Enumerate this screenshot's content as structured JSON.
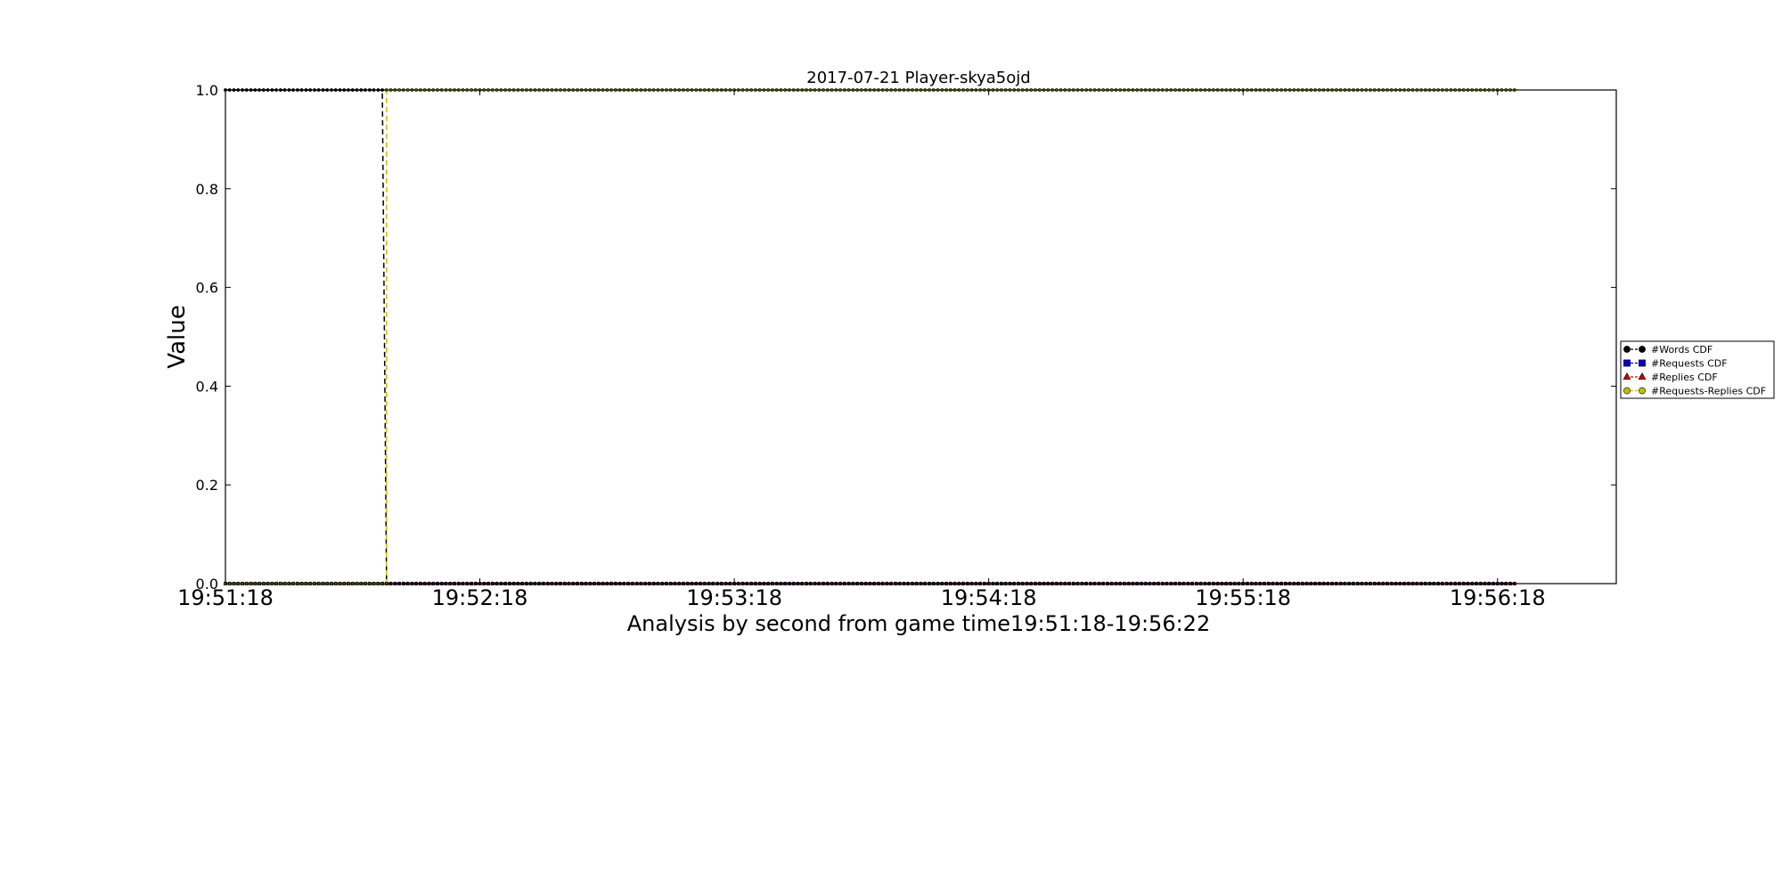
{
  "chart_data": {
    "type": "line",
    "title": "2017-07-21 Player-skya5ojd",
    "xlabel": "Analysis by second from game time19:51:18-19:56:22",
    "ylabel": "Value",
    "x_ticks": [
      "19:51:18",
      "19:52:18",
      "19:53:18",
      "19:54:18",
      "19:55:18",
      "19:56:18"
    ],
    "y_ticks": [
      "0.0",
      "0.2",
      "0.4",
      "0.6",
      "0.8",
      "1.0"
    ],
    "xlim": [
      "19:51:18",
      "19:56:46"
    ],
    "ylim": [
      0,
      1
    ],
    "grid": false,
    "legend_position": "right",
    "series": [
      {
        "name": "#Words CDF",
        "color": "#000000",
        "marker": "circle",
        "linestyle": "dashed",
        "x": [
          "19:51:18",
          "19:51:55",
          "19:51:56",
          "19:56:22"
        ],
        "y": [
          1.0,
          1.0,
          0.0,
          0.0
        ]
      },
      {
        "name": "#Requests CDF",
        "color": "#0000cc",
        "marker": "square",
        "linestyle": "dashed",
        "x": [
          "19:51:18",
          "19:51:56",
          "19:56:22"
        ],
        "y": [
          0.0,
          0.0,
          0.0
        ]
      },
      {
        "name": "#Replies CDF",
        "color": "#cc0000",
        "marker": "triangle",
        "linestyle": "dashed",
        "x": [
          "19:51:18",
          "19:51:56",
          "19:56:22"
        ],
        "y": [
          0.0,
          0.0,
          0.0
        ]
      },
      {
        "name": "#Requests-Replies CDF",
        "color": "#bfbf00",
        "marker": "circle",
        "linestyle": "dashed",
        "x": [
          "19:51:18",
          "19:51:56",
          "19:51:56",
          "19:56:22"
        ],
        "y": [
          0.0,
          0.0,
          1.0,
          1.0
        ]
      }
    ]
  }
}
